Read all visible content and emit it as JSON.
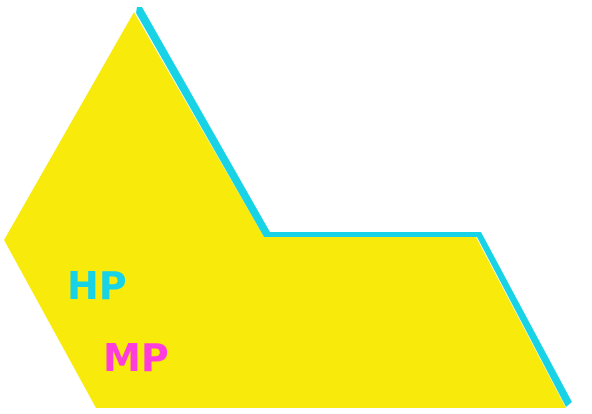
{
  "labels": {
    "hp": "HP",
    "mp": "MP"
  },
  "colors": {
    "background": "#ffffff",
    "shape_fill": "#f8ea0a",
    "shape_edge": "#18d2e6",
    "hp_text": "#18d2e6",
    "mp_text": "#ff3ddc"
  }
}
